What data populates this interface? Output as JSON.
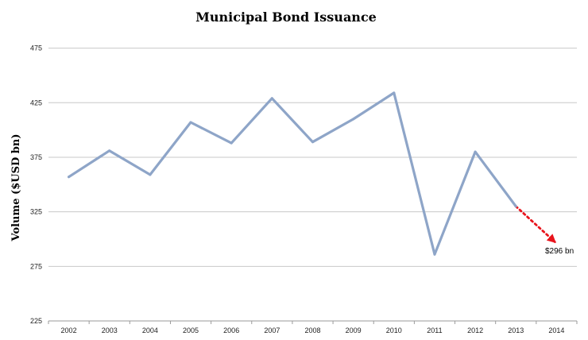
{
  "chart_data": {
    "type": "line",
    "title": "Municipal Bond Issuance",
    "xlabel": "",
    "ylabel": "Volume ($USD bn)",
    "categories": [
      "2002",
      "2003",
      "2004",
      "2005",
      "2006",
      "2007",
      "2008",
      "2009",
      "2010",
      "2011",
      "2012",
      "2013",
      "2014"
    ],
    "series": [
      {
        "values": [
          357,
          381,
          359,
          407,
          388,
          429,
          389,
          410,
          434,
          286,
          380,
          330,
          null
        ]
      }
    ],
    "forecast": {
      "from": "2013",
      "to": "2014",
      "from_value": 330,
      "to_value": 296,
      "color": "#e8141c"
    },
    "annotation": {
      "text": "$296 bn"
    },
    "yticks": [
      225,
      275,
      325,
      375,
      425,
      475
    ],
    "ylim": [
      225,
      490
    ],
    "grid": true,
    "legend": "none",
    "line_color": "#8ea5c8"
  }
}
